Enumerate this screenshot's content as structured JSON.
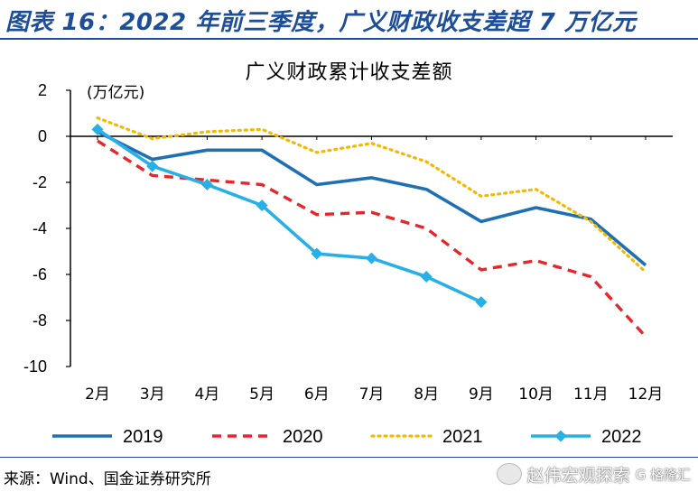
{
  "header": {
    "title": "图表 16：2022 年前三季度，广义财政收支差超 7 万亿元"
  },
  "footer": {
    "source": "来源：Wind、国金证券研究所",
    "watermark": "赵伟宏观探索",
    "watermark_logo": "G 格隆汇"
  },
  "chart_data": {
    "type": "line",
    "title": "广义财政累计收支差额",
    "ylabel": "(万亿元)",
    "xlabel": "",
    "categories": [
      "2月",
      "3月",
      "4月",
      "5月",
      "6月",
      "7月",
      "8月",
      "9月",
      "10月",
      "11月",
      "12月"
    ],
    "ylim": [
      -10,
      2
    ],
    "yticks": [
      2,
      0,
      -2,
      -4,
      -6,
      -8,
      -10
    ],
    "grid": false,
    "legend_position": "bottom",
    "series": [
      {
        "name": "2019",
        "color": "#1f6fb5",
        "style": "solid",
        "marker": "none",
        "values": [
          0.2,
          -1.0,
          -0.6,
          -0.6,
          -2.1,
          -1.8,
          -2.3,
          -3.7,
          -3.1,
          -3.6,
          -5.6
        ]
      },
      {
        "name": "2020",
        "color": "#e8252b",
        "style": "dashed",
        "marker": "none",
        "values": [
          -0.2,
          -1.7,
          -1.9,
          -2.1,
          -3.4,
          -3.3,
          -4.0,
          -5.8,
          -5.4,
          -6.1,
          -8.7
        ]
      },
      {
        "name": "2021",
        "color": "#f5b800",
        "style": "dotted",
        "marker": "none",
        "values": [
          0.8,
          -0.1,
          0.2,
          0.3,
          -0.7,
          -0.3,
          -1.1,
          -2.6,
          -2.3,
          -3.7,
          -5.9
        ]
      },
      {
        "name": "2022",
        "color": "#28b0e6",
        "style": "solid",
        "marker": "diamond",
        "values": [
          0.3,
          -1.3,
          -2.1,
          -3.0,
          -5.1,
          -5.3,
          -6.1,
          -7.2,
          null,
          null,
          null
        ]
      }
    ]
  }
}
